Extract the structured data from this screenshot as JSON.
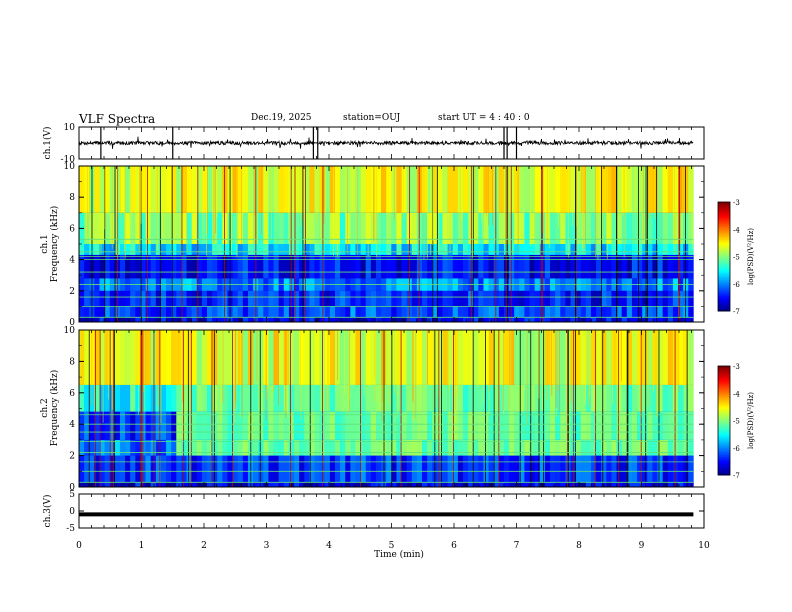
{
  "header": {
    "title": "VLF Spectra",
    "date": "Dec.19, 2025",
    "station": "station=OUJ",
    "start_ut": "start UT =  4 : 40 : 0"
  },
  "colorbar_label": "log(PSD)(V²/Hz)",
  "chart_data": [
    {
      "type": "line",
      "name": "ch1-waveform",
      "ylabel": "ch.1(V)",
      "ylim": [
        -10,
        10
      ],
      "yticks": [
        "10",
        "-10"
      ],
      "x": [
        0,
        10
      ],
      "baseline": 0,
      "spike_times_min": [
        0.35,
        1.5,
        3.75,
        3.82,
        6.8,
        6.85,
        7.0
      ]
    },
    {
      "type": "heatmap",
      "name": "ch1-spectrogram",
      "ylabel": "ch.1\nFrequency (kHz)",
      "ylim": [
        0,
        10
      ],
      "yticks": [
        "0",
        "2",
        "4",
        "6",
        "8",
        "10"
      ],
      "xlim": [
        0,
        10
      ],
      "data_extent_min": 9.83,
      "color_range_logpsd": [
        -7,
        -3
      ],
      "colorbar_ticks": [
        "-3",
        "-4",
        "-5",
        "-6",
        "-7"
      ],
      "bands": [
        {
          "f_from": 0,
          "f_to": 0.3,
          "level": -6.6
        },
        {
          "f_from": 0.3,
          "f_to": 1.0,
          "level": -6.2
        },
        {
          "f_from": 1.0,
          "f_to": 2.0,
          "level": -6.4
        },
        {
          "f_from": 2.0,
          "f_to": 2.8,
          "level": -6.0
        },
        {
          "f_from": 2.8,
          "f_to": 4.3,
          "level": -6.5
        },
        {
          "f_from": 4.3,
          "f_to": 5.0,
          "level": -5.6
        },
        {
          "f_from": 5.0,
          "f_to": 7.0,
          "level": -5.0
        },
        {
          "f_from": 7.0,
          "f_to": 10.0,
          "level": -4.6
        }
      ],
      "harmonic_lines_khz": [
        0.3,
        1.0,
        1.6,
        2.4,
        3.2,
        4.0,
        4.2,
        4.5,
        5.3
      ]
    },
    {
      "type": "heatmap",
      "name": "ch2-spectrogram",
      "ylabel": "ch.2\nFrequency (kHz)",
      "ylim": [
        0,
        10
      ],
      "yticks": [
        "0",
        "2",
        "4",
        "6",
        "8",
        "10"
      ],
      "xlim": [
        0,
        10
      ],
      "data_extent_min": 9.83,
      "color_range_logpsd": [
        -7,
        -3
      ],
      "colorbar_ticks": [
        "-3",
        "-4",
        "-5",
        "-6",
        "-7"
      ],
      "bands": [
        {
          "f_from": 0,
          "f_to": 0.3,
          "level": -6.6
        },
        {
          "f_from": 0.3,
          "f_to": 2.0,
          "level": -6.3
        },
        {
          "f_from": 2.0,
          "f_to": 3.0,
          "level": -6.0
        },
        {
          "f_from": 3.0,
          "f_to": 4.8,
          "level": -6.3
        },
        {
          "f_from": 4.8,
          "f_to": 6.5,
          "level": -5.4
        },
        {
          "f_from": 6.5,
          "f_to": 10.0,
          "level": -4.6
        }
      ],
      "enhanced_band": {
        "t_from_min": 1.48,
        "f_from_khz": 2.0,
        "f_to_khz": 5.2,
        "level": -5.1
      },
      "harmonic_lines_khz": [
        0.3,
        1.0,
        1.6,
        2.2,
        2.9,
        3.5,
        4.0,
        4.6
      ]
    },
    {
      "type": "line",
      "name": "ch3-waveform",
      "ylabel": "ch.3(V)",
      "ylim": [
        -5,
        5
      ],
      "yticks": [
        "5",
        "0",
        "-5"
      ],
      "x": [
        0,
        10
      ],
      "level": -1,
      "xlabel": "Time (min)",
      "xticks": [
        "0",
        "1",
        "2",
        "3",
        "4",
        "5",
        "6",
        "7",
        "8",
        "9",
        "10"
      ]
    }
  ]
}
